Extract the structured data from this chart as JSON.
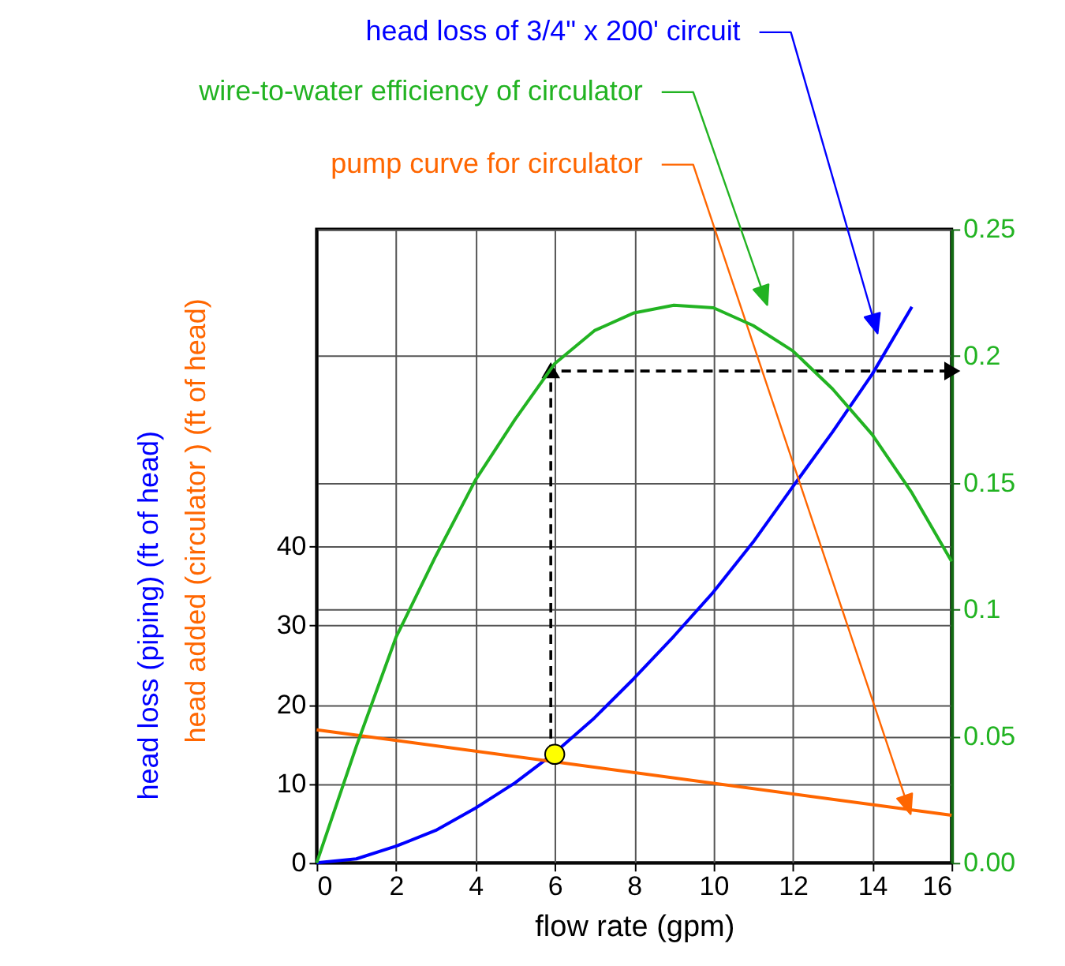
{
  "chart_data": {
    "type": "line",
    "xlabel": "flow rate (gpm)",
    "ylabel": "head loss (piping) (ft of head)",
    "xlim": [
      0,
      16
    ],
    "xticks": [
      0,
      2,
      4,
      6,
      8,
      10,
      12,
      14,
      16
    ],
    "ylim": [
      0,
      80
    ],
    "yticks": [
      0,
      10,
      20,
      30,
      40
    ],
    "y2lim": [
      0,
      0.25
    ],
    "y2ticks": [
      {
        "value": 0,
        "label": "0.00"
      },
      0.05,
      0.1,
      0.15,
      0.2,
      0.25
    ],
    "grid": true,
    "series": [
      {
        "type": "line",
        "color": "#0000ff",
        "x": [
          0,
          1,
          2,
          3,
          4,
          5,
          6,
          7,
          8,
          9,
          10,
          11,
          12,
          13,
          14,
          15
        ],
        "values": [
          0,
          0.5,
          2.1,
          4.1,
          6.9,
          10.1,
          13.9,
          18.3,
          23.3,
          28.6,
          34.2,
          40.5,
          47.5,
          54.4,
          61.7,
          70.2
        ]
      },
      {
        "type": "line",
        "color": "#ff6600",
        "x": [
          0,
          16
        ],
        "values": [
          16.8,
          6.0
        ]
      },
      {
        "type": "line",
        "color": "#22b322",
        "axis": "y2",
        "x": [
          0,
          1,
          2,
          3,
          4,
          5,
          6,
          7,
          8,
          9,
          10,
          11,
          12,
          13,
          14,
          15,
          16
        ],
        "values": [
          0,
          0.046,
          0.089,
          0.121,
          0.151,
          0.175,
          0.197,
          0.21,
          0.217,
          0.22,
          0.219,
          0.212,
          0.202,
          0.187,
          0.169,
          0.146,
          0.119
        ]
      },
      {
        "type": "line",
        "color": "#000000",
        "line_style": "dashed",
        "x": [
          5.9,
          5.9,
          16
        ],
        "values": [
          13.7,
          62.1,
          62.1
        ]
      },
      {
        "type": "scatter",
        "color": "#ffff00",
        "marker": "circle",
        "x": [
          6
        ],
        "values": [
          13.7
        ]
      }
    ],
    "annotations": [
      "head loss of 3/4\" x 200' circuit",
      "wire-to-water efficiency of circulator",
      "pump curve for circulator",
      "head added (circulator ) (ft of head)"
    ]
  }
}
